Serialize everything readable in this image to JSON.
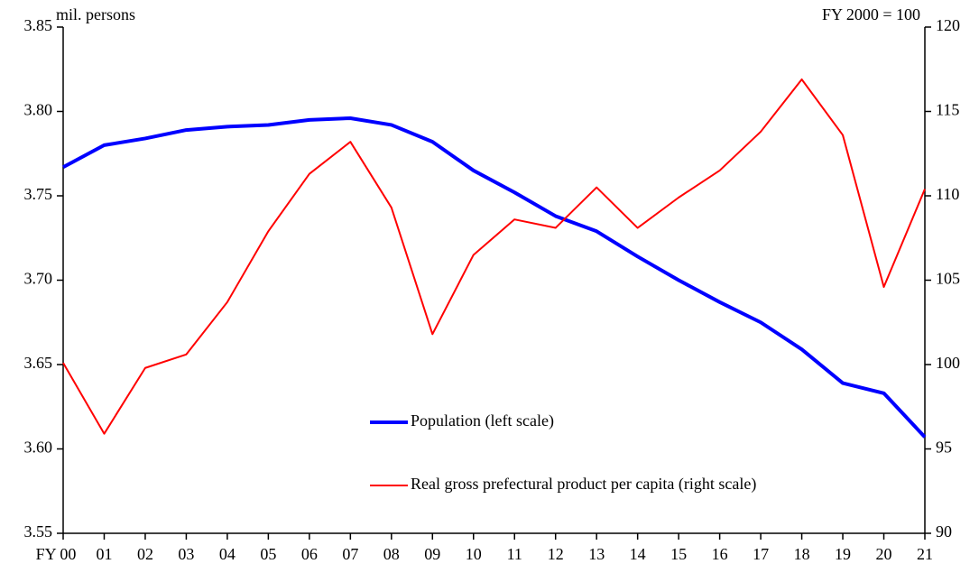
{
  "chart_data": {
    "type": "line",
    "y_label": "mil.  persons",
    "y2_label": "FY 2000 = 100",
    "categories": [
      "FY 00",
      "01",
      "02",
      "03",
      "04",
      "05",
      "06",
      "07",
      "08",
      "09",
      "10",
      "11",
      "12",
      "13",
      "14",
      "15",
      "16",
      "17",
      "18",
      "19",
      "20",
      "21"
    ],
    "series": [
      {
        "name": "Population (left scale)",
        "color": "#0000ff",
        "width": 4,
        "values": [
          3.767,
          3.78,
          3.784,
          3.789,
          3.791,
          3.792,
          3.795,
          3.796,
          3.792,
          3.782,
          3.765,
          3.752,
          3.738,
          3.729,
          3.714,
          3.7,
          3.687,
          3.675,
          3.659,
          3.639,
          3.633,
          3.607
        ]
      },
      {
        "name": "Real gross prefectural product per capita (right scale)",
        "color": "#ff0000",
        "width": 2,
        "axis": "y2",
        "values": [
          100.1,
          95.9,
          99.8,
          100.6,
          103.7,
          107.9,
          111.3,
          113.2,
          109.3,
          101.8,
          106.5,
          108.6,
          108.1,
          110.5,
          108.1,
          109.9,
          111.5,
          113.8,
          116.9,
          113.6,
          104.6,
          110.4
        ]
      }
    ],
    "ylim": [
      3.55,
      3.85
    ],
    "yticks": [
      3.55,
      {
        "value": 3.6,
        "label": "3.60"
      },
      3.65,
      {
        "value": 3.7,
        "label": "3.70"
      },
      3.75,
      {
        "value": 3.8,
        "label": "3.80"
      },
      3.85
    ],
    "y2lim": [
      90,
      120
    ],
    "y2ticks": [
      90,
      95,
      100,
      105,
      110,
      115,
      120
    ],
    "grid": false
  }
}
